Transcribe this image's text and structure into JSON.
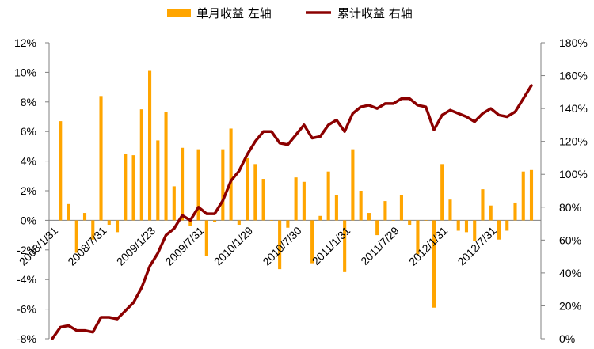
{
  "chart_data": {
    "type": "bar+line",
    "legend": [
      {
        "label": "单月收益 左轴",
        "kind": "bar",
        "color": "#FFA500"
      },
      {
        "label": "累计收益 右轴",
        "kind": "line",
        "color": "#8B0000"
      }
    ],
    "legend_position": "top-center",
    "x_tick_labels": [
      "2008/1/31",
      "2008/7/31",
      "2009/1/23",
      "2009/7/31",
      "2010/1/29",
      "2010/7/30",
      "2011/1/31",
      "2011/7/29",
      "2012/1/31",
      "2012/7/31"
    ],
    "y_left": {
      "min": -8,
      "max": 12,
      "step": 2,
      "unit": "%",
      "ticks": [
        "12%",
        "10%",
        "8%",
        "6%",
        "4%",
        "2%",
        "0%",
        "-2%",
        "-4%",
        "-6%",
        "-8%"
      ]
    },
    "y_right": {
      "min": 0,
      "max": 180,
      "step": 20,
      "unit": "%",
      "ticks": [
        "180%",
        "160%",
        "140%",
        "120%",
        "100%",
        "80%",
        "60%",
        "40%",
        "20%",
        "0%"
      ]
    },
    "monthly_return_pct": [
      6.7,
      1.1,
      -2.2,
      0.5,
      -1.3,
      8.4,
      -0.3,
      -0.8,
      4.5,
      4.4,
      7.5,
      10.1,
      5.4,
      7.3,
      2.3,
      4.9,
      -0.4,
      4.8,
      -2.4,
      -0.1,
      4.8,
      6.2,
      -0.3,
      4.2,
      3.8,
      2.8,
      0.0,
      -3.3,
      -0.5,
      2.9,
      2.6,
      -2.9,
      0.3,
      3.3,
      1.7,
      -3.5,
      4.8,
      2.0,
      0.5,
      -1.0,
      1.3,
      0.0,
      1.7,
      -0.3,
      -2.3,
      0.0,
      -5.9,
      3.8,
      1.4,
      -0.7,
      -0.8,
      -1.4,
      2.1,
      1.0,
      -1.3,
      -0.7,
      1.2,
      3.3,
      3.4
    ],
    "cumulative_return_pct": [
      0,
      7,
      8,
      5,
      5,
      4,
      13,
      13,
      12,
      17,
      22,
      31,
      44,
      52,
      63,
      67,
      75,
      72,
      80,
      76,
      76,
      84,
      96,
      102,
      112,
      120,
      126,
      126,
      119,
      118,
      124,
      130,
      122,
      123,
      130,
      133,
      126,
      137,
      141,
      142,
      140,
      143,
      143,
      146,
      146,
      142,
      141,
      127,
      136,
      139,
      137,
      135,
      132,
      137,
      140,
      136,
      135,
      138,
      146,
      154
    ]
  }
}
